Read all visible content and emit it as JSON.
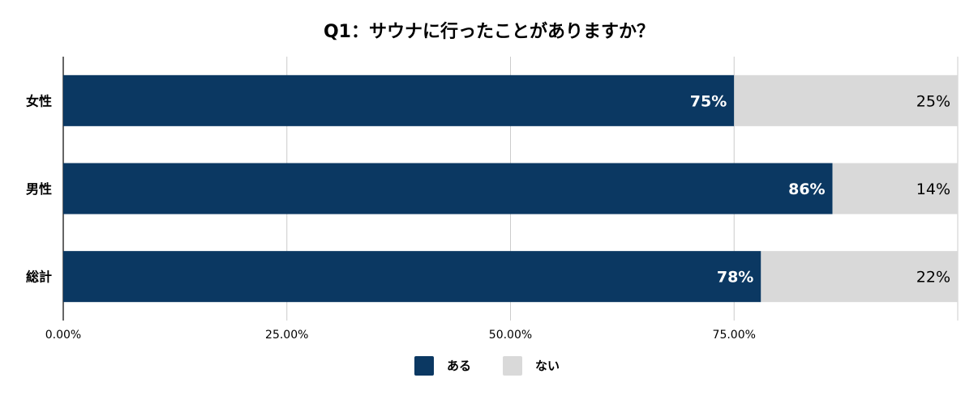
{
  "chart_data": {
    "type": "bar",
    "orientation": "horizontal",
    "stacked": true,
    "title": "Q1：サウナに行ったことがありますか？",
    "categories": [
      "女性",
      "男性",
      "総計"
    ],
    "series": [
      {
        "name": "ある",
        "color": "#0b3862",
        "values": [
          75,
          86,
          78
        ],
        "labels": [
          "75%",
          "86%",
          "78%"
        ]
      },
      {
        "name": "ない",
        "color": "#d9d9d9",
        "values": [
          25,
          14,
          22
        ],
        "labels": [
          "25%",
          "14%",
          "22%"
        ]
      }
    ],
    "xlim": [
      0,
      100
    ],
    "xticks": [
      {
        "value": 0,
        "label": "0.00%"
      },
      {
        "value": 25,
        "label": "25.00%"
      },
      {
        "value": 50,
        "label": "50.00%"
      },
      {
        "value": 75,
        "label": "75.00%"
      },
      {
        "value": 100,
        "label": ""
      }
    ],
    "grid": true,
    "legend_position": "bottom-center"
  }
}
